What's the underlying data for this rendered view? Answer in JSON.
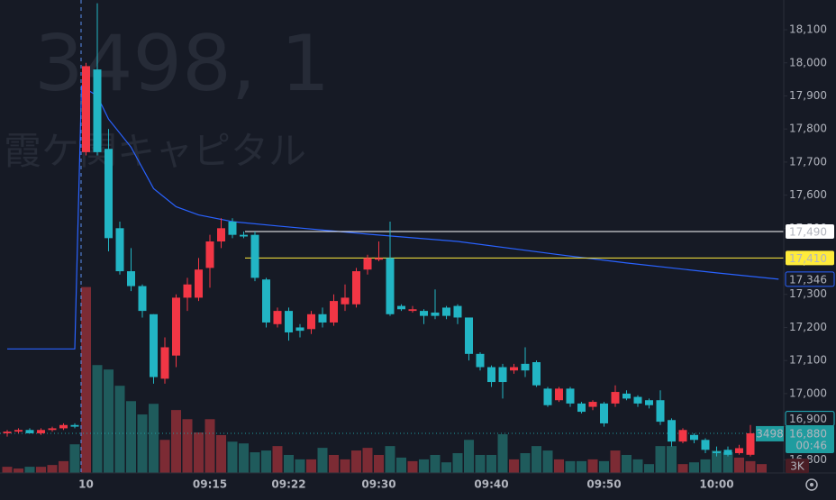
{
  "chart_data": {
    "type": "candlestick",
    "watermark": {
      "symbol_line": "3498, 1",
      "name": "霞ケ関キャピタル"
    },
    "categories": [
      null,
      null,
      null,
      null,
      null,
      null,
      null,
      "10",
      null,
      null,
      null,
      null,
      null,
      null,
      null,
      null,
      null,
      null,
      "09:15",
      null,
      null,
      null,
      null,
      null,
      null,
      "09:22",
      null,
      null,
      null,
      null,
      null,
      null,
      null,
      "09:30",
      null,
      null,
      null,
      null,
      null,
      null,
      null,
      null,
      null,
      "09:40",
      null,
      null,
      null,
      null,
      null,
      null,
      null,
      null,
      null,
      "09:50",
      null,
      null,
      null,
      null,
      null,
      null,
      null,
      null,
      null,
      "10:00",
      null,
      null,
      null,
      null
    ],
    "open": [
      16880,
      16885,
      16890,
      16880,
      16890,
      16895,
      16905,
      17730,
      17980,
      17740,
      17500,
      17370,
      17325,
      17240,
      17045,
      17115,
      17290,
      17290,
      17380,
      17460,
      17520,
      17480,
      17480,
      17345,
      17210,
      17250,
      17200,
      17195,
      17240,
      17215,
      17270,
      17270,
      17375,
      17405,
      17410,
      17265,
      17250,
      17250,
      17245,
      17260,
      17265,
      17230,
      17120,
      17080,
      17080,
      17070,
      17090,
      17095,
      17015,
      16980,
      17015,
      16970,
      16960,
      16970,
      16970,
      17000,
      16990,
      16980,
      16980,
      16920,
      16855,
      16875,
      16860,
      16825,
      16830,
      16820,
      16815,
      16875
    ],
    "high": [
      16890,
      16895,
      16895,
      16895,
      16900,
      16910,
      16910,
      18000,
      18180,
      17800,
      17520,
      17440,
      17330,
      17240,
      17170,
      17300,
      17350,
      17410,
      17480,
      17530,
      17530,
      17490,
      17490,
      17350,
      17260,
      17260,
      17210,
      17250,
      17260,
      17300,
      17330,
      17380,
      17420,
      17460,
      17520,
      17270,
      17265,
      17255,
      17315,
      17265,
      17270,
      17230,
      17125,
      17085,
      17090,
      17090,
      17140,
      17100,
      17020,
      17020,
      17020,
      16975,
      16980,
      16975,
      17025,
      17010,
      16995,
      16985,
      17010,
      16925,
      16895,
      16880,
      16865,
      16840,
      16840,
      16845,
      16905,
      16900
    ],
    "low": [
      16870,
      16880,
      16880,
      16875,
      16885,
      16890,
      16895,
      17720,
      17720,
      17430,
      17360,
      17310,
      17230,
      17030,
      17030,
      17080,
      17250,
      17280,
      17320,
      17440,
      17470,
      17470,
      17340,
      17200,
      17200,
      17160,
      17170,
      17180,
      17200,
      17205,
      17250,
      17260,
      17360,
      17400,
      17235,
      17250,
      17245,
      17210,
      17225,
      17225,
      17210,
      17100,
      17070,
      17020,
      16985,
      17060,
      17050,
      17020,
      16960,
      16975,
      16960,
      16940,
      16950,
      16900,
      16960,
      16980,
      16960,
      16955,
      16905,
      16840,
      16850,
      16850,
      16820,
      16810,
      16810,
      16815,
      16810,
      16870
    ],
    "close": [
      16885,
      16890,
      16880,
      16890,
      16895,
      16905,
      16900,
      17990,
      17730,
      17470,
      17370,
      17325,
      17250,
      17050,
      17140,
      17290,
      17330,
      17375,
      17460,
      17500,
      17480,
      17475,
      17350,
      17215,
      17250,
      17185,
      17190,
      17240,
      17215,
      17280,
      17290,
      17370,
      17410,
      17410,
      17240,
      17255,
      17255,
      17235,
      17235,
      17235,
      17230,
      17120,
      17080,
      17035,
      17035,
      17080,
      17070,
      17025,
      16965,
      17015,
      16970,
      16945,
      16975,
      16910,
      17005,
      16985,
      16970,
      16965,
      16915,
      16855,
      16890,
      16860,
      16830,
      16820,
      16815,
      16835,
      16880,
      16880
    ],
    "volume": [
      2100,
      1500,
      2100,
      2100,
      2700,
      4000,
      9700,
      62900,
      36500,
      35000,
      29500,
      24300,
      19800,
      23400,
      11200,
      21300,
      18200,
      13700,
      18200,
      12800,
      10600,
      10000,
      7000,
      7600,
      9100,
      6100,
      4600,
      4600,
      8500,
      6100,
      4600,
      7600,
      8500,
      6100,
      9100,
      5200,
      4000,
      4600,
      6100,
      3600,
      6700,
      11200,
      6100,
      6100,
      13100,
      4600,
      6700,
      9100,
      7600,
      4600,
      4000,
      4000,
      4600,
      4000,
      7600,
      6100,
      4600,
      3000,
      9100,
      9100,
      3000,
      3600,
      4600,
      7600,
      7000,
      5200,
      4000,
      3000
    ],
    "up_color": "#f23645",
    "down_color": "#22b5c4",
    "volume_up_color": "#7c2b34",
    "volume_down_color": "#1f5b5c",
    "ylim": [
      16760,
      18190
    ],
    "volume_lim": [
      0,
      160000
    ],
    "yticks": [
      {
        "value": 16800,
        "label": "16,800"
      },
      {
        "value": 16900,
        "label": "16,900"
      },
      {
        "value": 17000,
        "label": "17,000"
      },
      {
        "value": 17100,
        "label": "17,100"
      },
      {
        "value": 17200,
        "label": "17,200"
      },
      {
        "value": 17300,
        "label": "17,300"
      },
      {
        "value": 17400,
        "label": "17,400"
      },
      {
        "value": 17500,
        "label": "17,500"
      },
      {
        "value": 17600,
        "label": "17,600"
      },
      {
        "value": 17700,
        "label": "17,700"
      },
      {
        "value": 17800,
        "label": "17,800"
      },
      {
        "value": 17900,
        "label": "17,900"
      },
      {
        "value": 18000,
        "label": "18,000"
      },
      {
        "value": 18100,
        "label": "18,100"
      }
    ],
    "vwap": {
      "color": "#2962ff",
      "x": [
        0,
        6,
        6.6,
        8,
        9,
        11,
        13,
        15,
        17,
        20,
        24,
        32,
        40,
        49,
        55,
        63,
        68.5
      ],
      "values": [
        17135,
        17135,
        17930,
        17900,
        17830,
        17745,
        17620,
        17565,
        17540,
        17520,
        17507,
        17482,
        17460,
        17420,
        17395,
        17365,
        17346
      ],
      "last_label": "17,346"
    },
    "price_lines": [
      {
        "value": 17490,
        "label": "17,490",
        "color": "#ffffff",
        "text_color": "#131722",
        "line": true
      },
      {
        "value": 17410,
        "label": "17,410",
        "color": "#ffeb3b",
        "text_color": "#131722",
        "line": true
      },
      {
        "value": 16900,
        "label": "16,900",
        "color": "#22b5c4",
        "text_color": "#22b5c4",
        "line": false
      }
    ],
    "current": {
      "value": 16880,
      "label": "16,880",
      "symbol": "3498",
      "countdown": "00:46",
      "color": "#1f9c9f"
    },
    "volume_tag": {
      "label": "3K",
      "color": "#f23645"
    }
  }
}
